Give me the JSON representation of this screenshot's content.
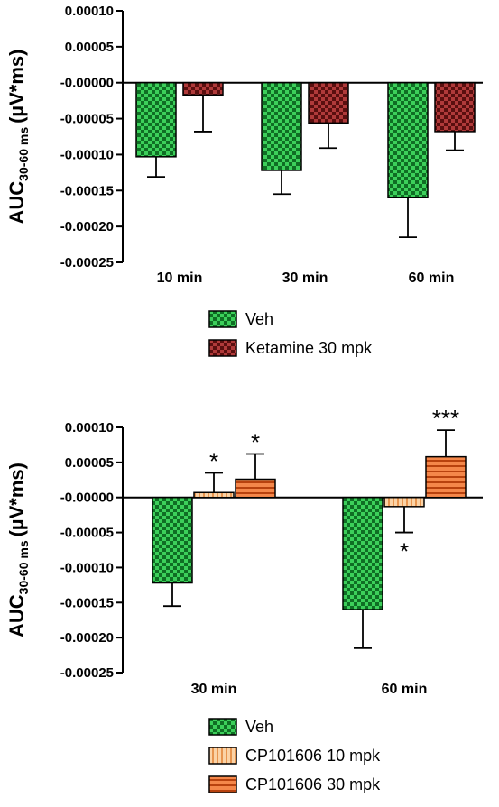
{
  "colors": {
    "veh": "#19a93a",
    "ketamine": "#8c1d1d",
    "cp10": "#f6b478",
    "cp30": "#ee6a22"
  },
  "chart_data": [
    {
      "type": "bar",
      "ylabel": "AUC",
      "ylabel_sub": "30-60 ms",
      "ylabel_unit": "(µV*ms)",
      "ylim": [
        -0.00025,
        0.0001
      ],
      "yticks": [
        0.0001,
        5e-05,
        0.0,
        -5e-05,
        -0.0001,
        -0.00015,
        -0.0002,
        -0.00025
      ],
      "ytick_labels": [
        "0.00010",
        "0.00005",
        "-0.00000",
        "-0.00005",
        "-0.00010",
        "-0.00015",
        "-0.00020",
        "-0.00025"
      ],
      "categories": [
        "10 min",
        "30 min",
        "60 min"
      ],
      "series": [
        {
          "name": "Veh",
          "pattern": "checker",
          "color": "#19a93a",
          "values": [
            -0.000103,
            -0.000122,
            -0.00016
          ],
          "errors": [
            2.8e-05,
            3.3e-05,
            5.5e-05
          ]
        },
        {
          "name": "Ketamine 30 mpk",
          "pattern": "checker",
          "color": "#8c1d1d",
          "values": [
            -1.7e-05,
            -5.6e-05,
            -6.8e-05
          ],
          "errors": [
            5.1e-05,
            3.5e-05,
            2.6e-05
          ]
        }
      ],
      "annotations": []
    },
    {
      "type": "bar",
      "ylabel": "AUC",
      "ylabel_sub": "30-60 ms",
      "ylabel_unit": "(µV*ms)",
      "ylim": [
        -0.00025,
        0.0001
      ],
      "yticks": [
        0.0001,
        5e-05,
        0.0,
        -5e-05,
        -0.0001,
        -0.00015,
        -0.0002,
        -0.00025
      ],
      "ytick_labels": [
        "0.00010",
        "0.00005",
        "-0.00000",
        "-0.00005",
        "-0.00010",
        "-0.00015",
        "-0.00020",
        "-0.00025"
      ],
      "categories": [
        "30 min",
        "60 min"
      ],
      "series": [
        {
          "name": "Veh",
          "pattern": "checker",
          "color": "#19a93a",
          "values": [
            -0.000122,
            -0.00016
          ],
          "errors": [
            3.3e-05,
            5.5e-05
          ]
        },
        {
          "name": "CP101606 10 mpk",
          "pattern": "vlines",
          "color": "#f6b478",
          "values": [
            7e-06,
            -1.3e-05
          ],
          "errors": [
            2.8e-05,
            3.7e-05
          ]
        },
        {
          "name": "CP101606 30 mpk",
          "pattern": "hlines",
          "color": "#ee6a22",
          "values": [
            2.6e-05,
            5.8e-05
          ],
          "errors": [
            3.6e-05,
            3.8e-05
          ]
        }
      ],
      "annotations": [
        {
          "category": 0,
          "series": 1,
          "text": "*"
        },
        {
          "category": 0,
          "series": 2,
          "text": "*"
        },
        {
          "category": 1,
          "series": 1,
          "text": "*"
        },
        {
          "category": 1,
          "series": 2,
          "text": "***"
        }
      ]
    }
  ]
}
